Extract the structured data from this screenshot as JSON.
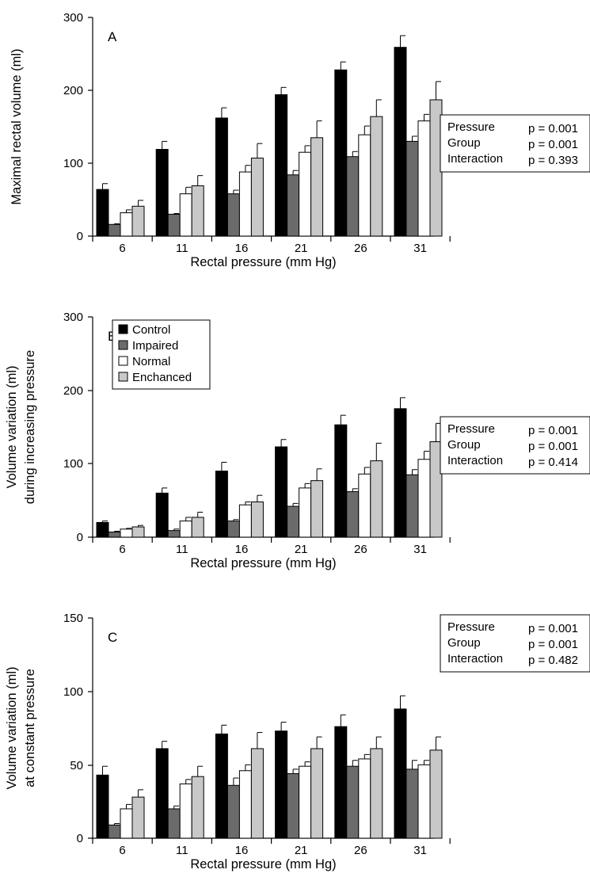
{
  "colors": {
    "Control": "#000000",
    "Impaired": "#6b6b6b",
    "Normal": "#ffffff",
    "Enchanced": "#c8c8c8"
  },
  "legend": {
    "placement": "top-left of panel B",
    "entries": [
      "Control",
      "Impaired",
      "Normal",
      "Enchanced"
    ]
  },
  "chart_data": [
    {
      "type": "bar",
      "panel": "A",
      "categories": [
        "6",
        "11",
        "16",
        "21",
        "26",
        "31"
      ],
      "xlabel": "Rectal pressure (mm Hg)",
      "ylabel": [
        "Maximal rectal volume (ml)"
      ],
      "ylim": [
        0,
        300
      ],
      "yticks": [
        "0",
        "100",
        "200",
        "300"
      ],
      "series": [
        {
          "name": "Control",
          "values": [
            64,
            119,
            162,
            194,
            228,
            259
          ],
          "errors": [
            8,
            11,
            14,
            10,
            11,
            16
          ]
        },
        {
          "name": "Impaired",
          "values": [
            16,
            30,
            58,
            84,
            109,
            130
          ],
          "errors": [
            1,
            1,
            5,
            6,
            7,
            7
          ]
        },
        {
          "name": "Normal",
          "values": [
            32,
            58,
            88,
            115,
            139,
            158
          ],
          "errors": [
            4,
            9,
            9,
            9,
            12,
            9
          ]
        },
        {
          "name": "Enchanced",
          "values": [
            41,
            69,
            107,
            135,
            164,
            187
          ],
          "errors": [
            8,
            14,
            20,
            23,
            23,
            25
          ]
        }
      ],
      "stats": [
        {
          "label": "Pressure",
          "value": "p = 0.001"
        },
        {
          "label": "Group",
          "value": "p = 0.001"
        },
        {
          "label": "Interaction",
          "value": "p = 0.393"
        }
      ]
    },
    {
      "type": "bar",
      "panel": "B",
      "categories": [
        "6",
        "11",
        "16",
        "21",
        "26",
        "31"
      ],
      "xlabel": "Rectal pressure (mm Hg)",
      "ylabel": [
        "Volume variation (ml)",
        "during increasing pressure"
      ],
      "ylim": [
        0,
        300
      ],
      "yticks": [
        "0",
        "100",
        "200",
        "300"
      ],
      "series": [
        {
          "name": "Control",
          "values": [
            20,
            60,
            90,
            123,
            153,
            175
          ],
          "errors": [
            2,
            7,
            12,
            10,
            13,
            15
          ]
        },
        {
          "name": "Impaired",
          "values": [
            7,
            9,
            22,
            42,
            62,
            85
          ],
          "errors": [
            1,
            2,
            2,
            4,
            4,
            7
          ]
        },
        {
          "name": "Normal",
          "values": [
            11,
            22,
            44,
            67,
            86,
            106
          ],
          "errors": [
            1,
            5,
            4,
            6,
            9,
            11
          ]
        },
        {
          "name": "Enchanced",
          "values": [
            14,
            27,
            48,
            77,
            104,
            130
          ],
          "errors": [
            2,
            7,
            9,
            16,
            24,
            25
          ]
        }
      ],
      "stats": [
        {
          "label": "Pressure",
          "value": "p = 0.001"
        },
        {
          "label": "Group",
          "value": "p = 0.001"
        },
        {
          "label": "Interaction",
          "value": "p = 0.414"
        }
      ]
    },
    {
      "type": "bar",
      "panel": "C",
      "categories": [
        "6",
        "11",
        "16",
        "21",
        "26",
        "31"
      ],
      "xlabel": "Rectal pressure (mm Hg)",
      "ylabel": [
        "Volume variation (ml)",
        "at constant pressure"
      ],
      "ylim": [
        0,
        150
      ],
      "yticks": [
        "0",
        "50",
        "100",
        "150"
      ],
      "series": [
        {
          "name": "Control",
          "values": [
            43,
            61,
            71,
            73,
            76,
            88
          ],
          "errors": [
            6,
            5,
            6,
            6,
            8,
            9
          ]
        },
        {
          "name": "Impaired",
          "values": [
            9,
            20,
            36,
            44,
            49,
            47
          ],
          "errors": [
            1,
            2,
            5,
            3,
            4,
            6
          ]
        },
        {
          "name": "Normal",
          "values": [
            20,
            37,
            46,
            49,
            54,
            50
          ],
          "errors": [
            3,
            3,
            4,
            3,
            3,
            3
          ]
        },
        {
          "name": "Enchanced",
          "values": [
            28,
            42,
            61,
            61,
            61,
            60
          ],
          "errors": [
            5,
            7,
            11,
            8,
            8,
            9
          ]
        }
      ],
      "stats": [
        {
          "label": "Pressure",
          "value": "p = 0.001"
        },
        {
          "label": "Group",
          "value": "p = 0.001"
        },
        {
          "label": "Interaction",
          "value": "p = 0.482"
        }
      ]
    }
  ]
}
